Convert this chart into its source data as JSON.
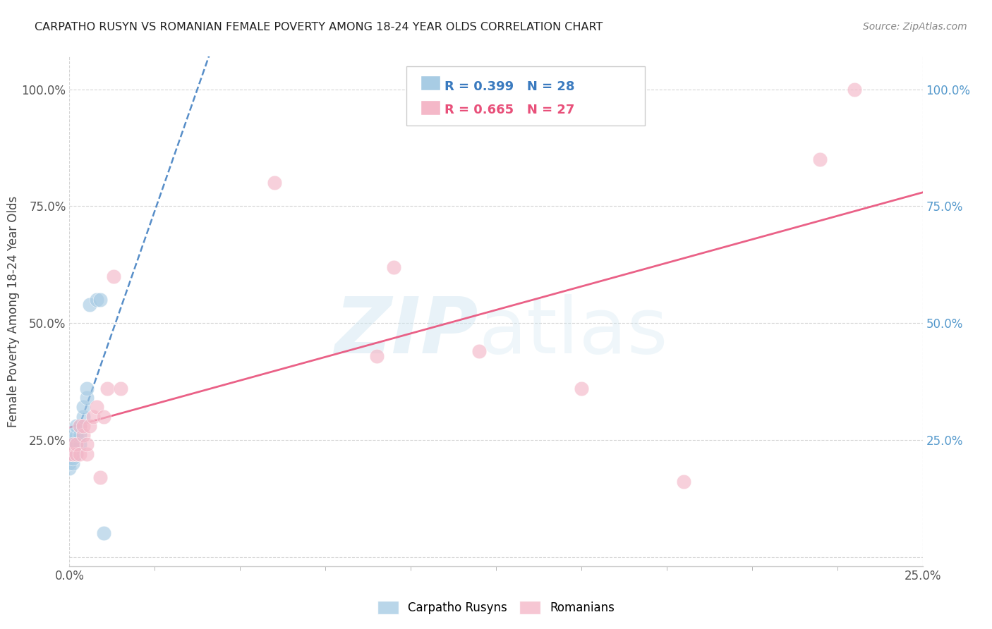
{
  "title": "CARPATHO RUSYN VS ROMANIAN FEMALE POVERTY AMONG 18-24 YEAR OLDS CORRELATION CHART",
  "source": "Source: ZipAtlas.com",
  "ylabel": "Female Poverty Among 18-24 Year Olds",
  "xlim": [
    0.0,
    0.25
  ],
  "ylim": [
    -0.02,
    1.07
  ],
  "blue_color": "#a8cce4",
  "pink_color": "#f4b8c8",
  "blue_line_color": "#3a7abf",
  "pink_line_color": "#e8507a",
  "watermark_zip": "ZIP",
  "watermark_atlas": "atlas",
  "background_color": "#ffffff",
  "grid_color": "#cccccc",
  "blue_x": [
    0.0,
    0.0,
    0.0,
    0.0,
    0.0,
    0.0,
    0.001,
    0.001,
    0.001,
    0.001,
    0.001,
    0.001,
    0.001,
    0.002,
    0.002,
    0.002,
    0.002,
    0.003,
    0.003,
    0.003,
    0.004,
    0.004,
    0.005,
    0.005,
    0.006,
    0.008,
    0.009,
    0.01
  ],
  "blue_y": [
    0.19,
    0.2,
    0.21,
    0.22,
    0.23,
    0.24,
    0.2,
    0.21,
    0.22,
    0.23,
    0.24,
    0.25,
    0.26,
    0.22,
    0.24,
    0.26,
    0.28,
    0.24,
    0.26,
    0.28,
    0.3,
    0.32,
    0.34,
    0.36,
    0.54,
    0.55,
    0.55,
    0.05
  ],
  "pink_x": [
    0.0,
    0.001,
    0.001,
    0.002,
    0.002,
    0.003,
    0.003,
    0.004,
    0.004,
    0.005,
    0.005,
    0.006,
    0.007,
    0.008,
    0.009,
    0.01,
    0.011,
    0.013,
    0.015,
    0.06,
    0.09,
    0.095,
    0.12,
    0.15,
    0.18,
    0.22,
    0.23
  ],
  "pink_y": [
    0.22,
    0.22,
    0.24,
    0.22,
    0.24,
    0.22,
    0.28,
    0.26,
    0.28,
    0.22,
    0.24,
    0.28,
    0.3,
    0.32,
    0.17,
    0.3,
    0.36,
    0.6,
    0.36,
    0.8,
    0.43,
    0.62,
    0.44,
    0.36,
    0.16,
    0.85,
    1.0
  ]
}
